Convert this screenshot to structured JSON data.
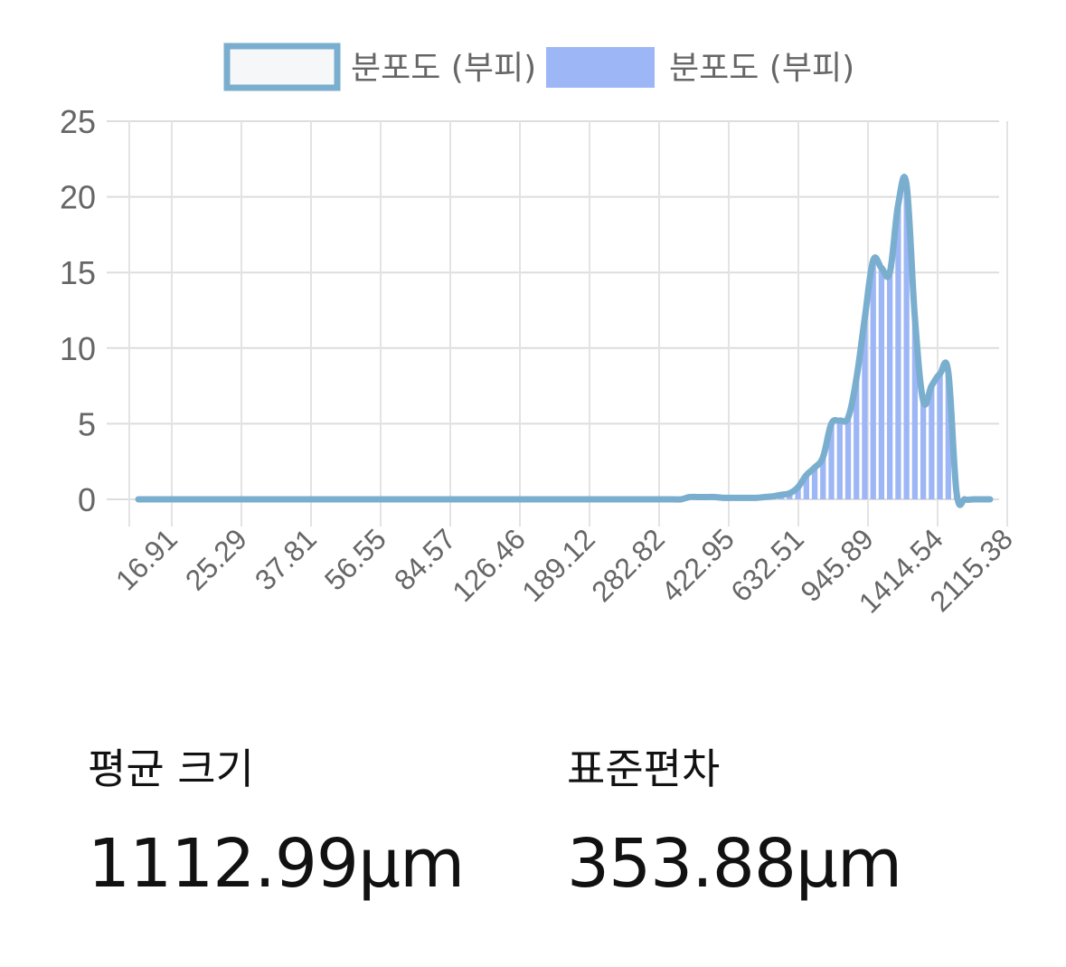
{
  "chart_data": {
    "type": "bar",
    "legend": {
      "position": "top",
      "items": [
        {
          "label": "분포도 (부피)",
          "kind": "line",
          "color": "#7AAECF"
        },
        {
          "label": "분포도 (부피)",
          "kind": "bar",
          "color": "#9DB6F5"
        }
      ]
    },
    "ylim": [
      0,
      25
    ],
    "y_ticks": [
      "25",
      "20",
      "15",
      "10",
      "5",
      "0"
    ],
    "x_tick_labels": [
      "16.91",
      "25.29",
      "37.81",
      "56.55",
      "84.57",
      "126.46",
      "189.12",
      "282.82",
      "422.95",
      "632.51",
      "945.89",
      "1414.54",
      "2115.38"
    ],
    "grid": true,
    "series": [
      {
        "kind": "bar",
        "color": "#9DB6F5",
        "values": [
          0,
          0,
          0,
          0,
          0,
          0,
          0,
          0,
          0,
          0,
          0,
          0,
          0,
          0,
          0,
          0,
          0,
          0,
          0,
          0,
          0,
          0,
          0,
          0,
          0,
          0,
          0,
          0,
          0,
          0,
          0,
          0,
          0,
          0,
          0,
          0,
          0,
          0,
          0,
          0,
          0,
          0,
          0,
          0,
          0,
          0,
          0,
          0,
          0,
          0,
          0,
          0,
          0,
          0,
          0,
          0,
          0,
          0,
          0,
          0,
          0,
          0,
          0,
          0,
          0,
          0,
          0.15,
          0.15,
          0.15,
          0.15,
          0.1,
          0.1,
          0.1,
          0.1,
          0.1,
          0.15,
          0.2,
          0.3,
          0.4,
          0.8,
          1.6,
          2.1,
          2.8,
          5.0,
          5.2,
          5.4,
          8.0,
          12.0,
          15.8,
          15.3,
          15.0,
          19.5,
          20.8,
          12.0,
          6.5,
          7.5,
          8.3,
          8.4,
          0.4,
          0,
          0,
          0,
          0
        ]
      },
      {
        "kind": "line",
        "color": "#7AAECF",
        "values": [
          0,
          0,
          0,
          0,
          0,
          0,
          0,
          0,
          0,
          0,
          0,
          0,
          0,
          0,
          0,
          0,
          0,
          0,
          0,
          0,
          0,
          0,
          0,
          0,
          0,
          0,
          0,
          0,
          0,
          0,
          0,
          0,
          0,
          0,
          0,
          0,
          0,
          0,
          0,
          0,
          0,
          0,
          0,
          0,
          0,
          0,
          0,
          0,
          0,
          0,
          0,
          0,
          0,
          0,
          0,
          0,
          0,
          0,
          0,
          0,
          0,
          0,
          0,
          0,
          0,
          0,
          0.15,
          0.15,
          0.15,
          0.15,
          0.1,
          0.1,
          0.1,
          0.1,
          0.1,
          0.15,
          0.2,
          0.3,
          0.4,
          0.8,
          1.6,
          2.1,
          2.8,
          5.0,
          5.2,
          5.4,
          8.0,
          12.0,
          15.8,
          15.3,
          15.0,
          19.5,
          20.8,
          12.0,
          6.5,
          7.5,
          8.3,
          8.4,
          0.4,
          0,
          0,
          0,
          0
        ]
      }
    ]
  },
  "stats": {
    "mean_label": "평균 크기",
    "mean_value": "1112.99μm",
    "std_label": "표준편차",
    "std_value": "353.88μm"
  }
}
